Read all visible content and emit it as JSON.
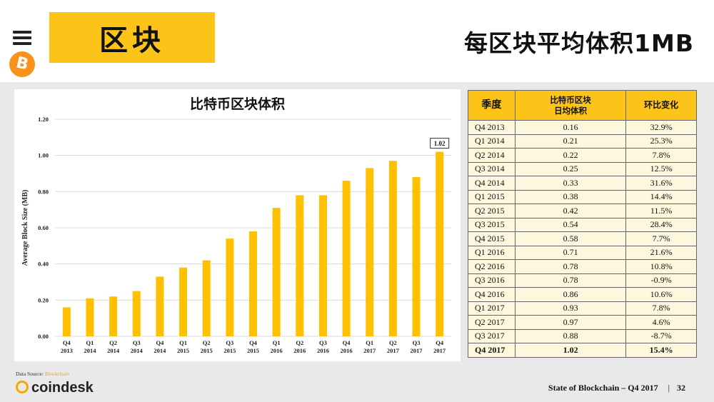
{
  "header": {
    "section_title": "区块",
    "slide_title": "每区块平均体积1MB"
  },
  "icons": {
    "menu": "menu-icon",
    "bitcoin": "bitcoin-icon",
    "coindesk": "coindesk-logo"
  },
  "colors": {
    "accent": "#fcc419",
    "bar": "#ffc000",
    "table_row": "#fdf7dd",
    "bitcoin": "#f7931a"
  },
  "chart_data": {
    "type": "bar",
    "title": "比特币区块体积",
    "ylabel": "Average Block Size (MB)",
    "xlabel": "",
    "ylim": [
      0,
      1.2
    ],
    "yticks": [
      "0.00",
      "0.20",
      "0.40",
      "0.60",
      "0.80",
      "1.00",
      "1.20"
    ],
    "categories": [
      [
        "Q4",
        "2013"
      ],
      [
        "Q1",
        "2014"
      ],
      [
        "Q2",
        "2014"
      ],
      [
        "Q3",
        "2014"
      ],
      [
        "Q4",
        "2014"
      ],
      [
        "Q1",
        "2015"
      ],
      [
        "Q2",
        "2015"
      ],
      [
        "Q3",
        "2015"
      ],
      [
        "Q4",
        "2015"
      ],
      [
        "Q1",
        "2016"
      ],
      [
        "Q2",
        "2016"
      ],
      [
        "Q3",
        "2016"
      ],
      [
        "Q4",
        "2016"
      ],
      [
        "Q1",
        "2017"
      ],
      [
        "Q2",
        "2017"
      ],
      [
        "Q3",
        "2017"
      ],
      [
        "Q4",
        "2017"
      ]
    ],
    "values": [
      0.16,
      0.21,
      0.22,
      0.25,
      0.33,
      0.38,
      0.42,
      0.54,
      0.58,
      0.71,
      0.78,
      0.78,
      0.86,
      0.93,
      0.97,
      0.88,
      1.02
    ],
    "data_label": {
      "index": 16,
      "text": "1.02"
    },
    "grid": true,
    "legend": "none"
  },
  "table": {
    "headers": {
      "quarter": "季度",
      "size_line1": "比特币区块",
      "size_line2": "日均体积",
      "change": "环比变化"
    },
    "rows": [
      [
        "Q4 2013",
        "0.16",
        "32.9%"
      ],
      [
        "Q1 2014",
        "0.21",
        "25.3%"
      ],
      [
        "Q2 2014",
        "0.22",
        "7.8%"
      ],
      [
        "Q3 2014",
        "0.25",
        "12.5%"
      ],
      [
        "Q4 2014",
        "0.33",
        "31.6%"
      ],
      [
        "Q1 2015",
        "0.38",
        "14.4%"
      ],
      [
        "Q2 2015",
        "0.42",
        "11.5%"
      ],
      [
        "Q3 2015",
        "0.54",
        "28.4%"
      ],
      [
        "Q4 2015",
        "0.58",
        "7.7%"
      ],
      [
        "Q1 2016",
        "0.71",
        "21.6%"
      ],
      [
        "Q2 2016",
        "0.78",
        "10.8%"
      ],
      [
        "Q3 2016",
        "0.78",
        "-0.9%"
      ],
      [
        "Q4 2016",
        "0.86",
        "10.6%"
      ],
      [
        "Q1 2017",
        "0.93",
        "7.8%"
      ],
      [
        "Q2 2017",
        "0.97",
        "4.6%"
      ],
      [
        "Q3 2017",
        "0.88",
        "-8.7%"
      ],
      [
        "Q4 2017",
        "1.02",
        "15.4%"
      ]
    ]
  },
  "source": {
    "label": "Data Source:",
    "name": "Blockchain"
  },
  "brand": {
    "name": "coindesk"
  },
  "footer": {
    "text": "State of Blockchain – Q4 2017",
    "separator": "|",
    "page": "32"
  }
}
